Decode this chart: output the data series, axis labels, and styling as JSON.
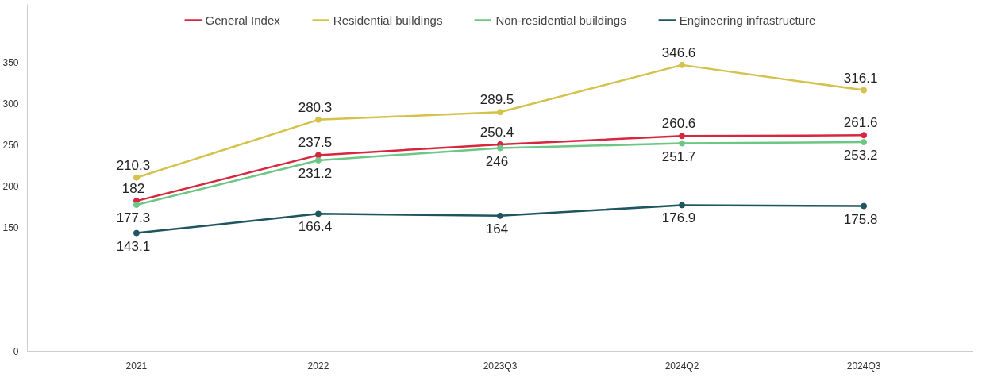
{
  "chart_data": {
    "type": "line",
    "categories": [
      "2021",
      "2022",
      "2023Q3",
      "2024Q2",
      "2024Q3"
    ],
    "series": [
      {
        "name": "General Index",
        "color": "#d7263d",
        "values": [
          182,
          237.5,
          250.4,
          260.6,
          261.6
        ]
      },
      {
        "name": "Residential buildings",
        "color": "#d4c24a",
        "values": [
          210.3,
          280.3,
          289.5,
          346.6,
          316.1
        ]
      },
      {
        "name": "Non-residential buildings",
        "color": "#6cc784",
        "values": [
          177.3,
          231.2,
          246,
          251.7,
          253.2
        ]
      },
      {
        "name": "Engineering infrastructure",
        "color": "#1f5560",
        "values": [
          143.1,
          166.4,
          164,
          176.9,
          175.8
        ]
      }
    ],
    "ylim": [
      0,
      420
    ],
    "yticks": [
      0,
      150,
      200,
      250,
      300,
      350
    ],
    "grid": false,
    "legend": "top",
    "marker": "circle",
    "line_style": "solid",
    "data_labels": true
  }
}
